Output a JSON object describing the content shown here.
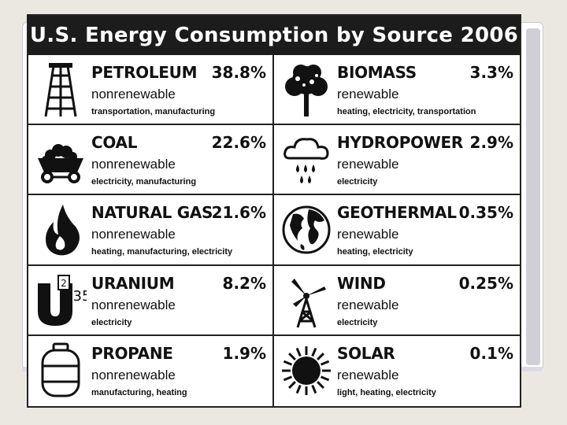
{
  "chart_data": {
    "type": "table",
    "title": "U.S. Energy Consumption by Source 2006",
    "sources": [
      {
        "name": "PETROLEUM",
        "percent": "38.8%",
        "value": 38.8,
        "type": "nonrenewable",
        "uses": "transportation, manufacturing",
        "icon": "oil-derrick-icon"
      },
      {
        "name": "BIOMASS",
        "percent": "3.3%",
        "value": 3.3,
        "type": "renewable",
        "uses": "heating, electricity, transportation",
        "icon": "tree-icon"
      },
      {
        "name": "COAL",
        "percent": "22.6%",
        "value": 22.6,
        "type": "nonrenewable",
        "uses": "electricity, manufacturing",
        "icon": "coal-cart-icon"
      },
      {
        "name": "HYDROPOWER",
        "percent": "2.9%",
        "value": 2.9,
        "type": "renewable",
        "uses": "electricity",
        "icon": "rain-cloud-icon"
      },
      {
        "name": "NATURAL GAS",
        "percent": "21.6%",
        "value": 21.6,
        "type": "nonrenewable",
        "uses": "heating, manufacturing, electricity",
        "icon": "flame-icon"
      },
      {
        "name": "GEOTHERMAL",
        "percent": "0.35%",
        "value": 0.35,
        "type": "renewable",
        "uses": "heating, electricity",
        "icon": "globe-icon"
      },
      {
        "name": "URANIUM",
        "percent": "8.2%",
        "value": 8.2,
        "type": "nonrenewable",
        "uses": "electricity",
        "icon": "uranium-235-icon"
      },
      {
        "name": "WIND",
        "percent": "0.25%",
        "value": 0.25,
        "type": "renewable",
        "uses": "electricity",
        "icon": "wind-turbine-icon"
      },
      {
        "name": "PROPANE",
        "percent": "1.9%",
        "value": 1.9,
        "type": "nonrenewable",
        "uses": "manufacturing, heating",
        "icon": "propane-tank-icon"
      },
      {
        "name": "SOLAR",
        "percent": "0.1%",
        "value": 0.1,
        "type": "renewable",
        "uses": "light, heating, electricity",
        "icon": "sun-icon"
      }
    ],
    "uranium_icon_label": {
      "letter": "U",
      "superscript": "2",
      "number": "35"
    }
  },
  "colors": {
    "title_bar": "#1c1c1c",
    "ink": "#111111",
    "background": "#ffffff",
    "page": "#ebe8e2"
  }
}
